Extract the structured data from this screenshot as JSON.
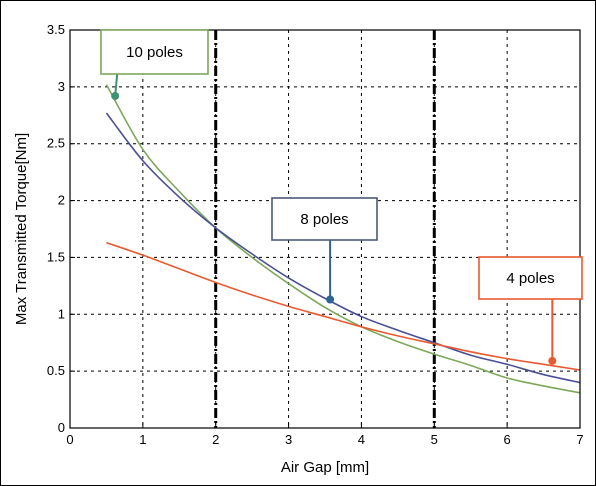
{
  "chart_data": {
    "type": "line",
    "title": "",
    "xlabel": "Air Gap [mm]",
    "ylabel": "Max Transmitted Torque[Nm]",
    "xlim": [
      0,
      7
    ],
    "ylim": [
      0,
      3.5
    ],
    "xticks": [
      0,
      1,
      2,
      3,
      4,
      5,
      6,
      7
    ],
    "yticks": [
      0,
      0.5,
      1,
      1.5,
      2,
      2.5,
      3,
      3.5
    ],
    "xtick_labels": [
      "0",
      "1",
      "2",
      "3",
      "4",
      "5",
      "6",
      "7"
    ],
    "ytick_labels": [
      "0",
      "0.5",
      "1",
      "1.5",
      "2",
      "2.5",
      "3",
      "3.5"
    ],
    "grid": true,
    "vertical_markers": [
      2,
      5
    ],
    "series": [
      {
        "name": "10 poles",
        "color": "#7da85a",
        "x": [
          0.5,
          1,
          1.5,
          2,
          2.5,
          3,
          3.5,
          4,
          4.5,
          5,
          5.5,
          6,
          6.5,
          7
        ],
        "y": [
          3.02,
          2.45,
          2.08,
          1.76,
          1.5,
          1.27,
          1.06,
          0.89,
          0.76,
          0.65,
          0.55,
          0.44,
          0.37,
          0.31
        ]
      },
      {
        "name": "8 poles",
        "color": "#4a4f96",
        "x": [
          0.5,
          1,
          1.5,
          2,
          2.5,
          3,
          3.5,
          4,
          4.5,
          5,
          5.5,
          6,
          6.5,
          7
        ],
        "y": [
          2.77,
          2.35,
          2.03,
          1.76,
          1.53,
          1.32,
          1.14,
          0.98,
          0.86,
          0.75,
          0.64,
          0.56,
          0.47,
          0.4
        ]
      },
      {
        "name": "4 poles",
        "color": "#e85a30",
        "x": [
          0.5,
          1,
          1.5,
          2,
          2.5,
          3,
          3.5,
          4,
          4.5,
          5,
          5.5,
          6,
          6.5,
          7
        ],
        "y": [
          1.63,
          1.52,
          1.4,
          1.28,
          1.17,
          1.07,
          0.98,
          0.89,
          0.81,
          0.74,
          0.67,
          0.61,
          0.56,
          0.51
        ]
      }
    ],
    "annotations": [
      {
        "label": "10 poles",
        "border": "#7da85a",
        "stem": "#3d9070",
        "point": [
          0.62,
          2.92
        ]
      },
      {
        "label": "8 poles",
        "border": "#4a5a78",
        "stem": "#2e6496",
        "point": [
          3.57,
          1.13
        ]
      },
      {
        "label": "4 poles",
        "border": "#e85a30",
        "stem": "#e85a30",
        "point": [
          6.62,
          0.59
        ]
      }
    ]
  }
}
